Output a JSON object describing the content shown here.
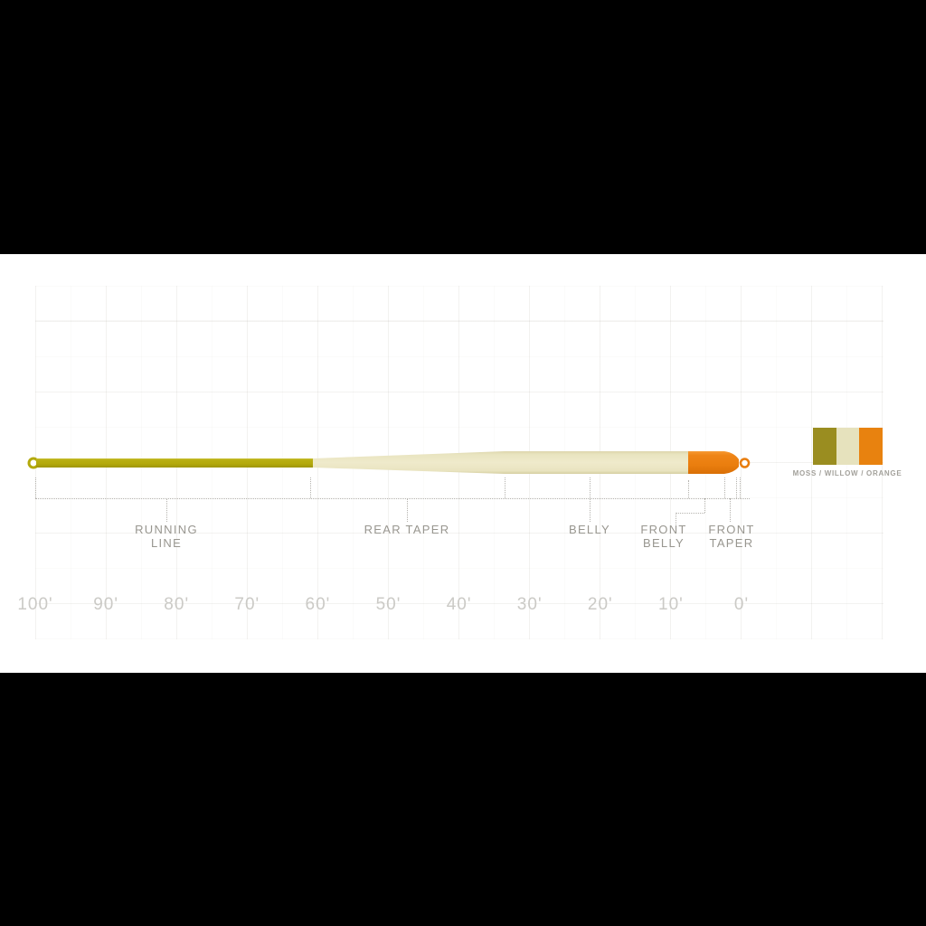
{
  "diagram": {
    "subject": "fly line taper profile",
    "sections": [
      {
        "id": "running-line",
        "label": "RUNNING LINE"
      },
      {
        "id": "rear-taper",
        "label": "REAR TAPER"
      },
      {
        "id": "belly",
        "label": "BELLY"
      },
      {
        "id": "front-belly",
        "label": "FRONT BELLY"
      },
      {
        "id": "front-taper",
        "label": "FRONT TAPER"
      }
    ],
    "ruler": {
      "unit": "feet",
      "labels": [
        "100'",
        "90'",
        "80'",
        "70'",
        "60'",
        "50'",
        "40'",
        "30'",
        "20'",
        "10'",
        "0'"
      ]
    },
    "legend": {
      "caption": "MOSS / WILLOW / ORANGE",
      "colors": [
        {
          "name": "moss",
          "hex": "#9a8d20"
        },
        {
          "name": "willow",
          "hex": "#e6e2bd"
        },
        {
          "name": "orange",
          "hex": "#e8820f"
        }
      ]
    },
    "line_colors": {
      "running_line_moss": "#b3a90b",
      "taper_belly_willow": "#ebe6c4",
      "front_orange": "#ea7e0e"
    }
  },
  "chart_data": {
    "type": "diagram",
    "title": "fly line taper diagram",
    "axis": {
      "label_unit": "feet",
      "ticks": [
        100,
        90,
        80,
        70,
        60,
        50,
        40,
        30,
        20,
        10,
        0
      ],
      "orientation": "values decrease left to right toward line tip"
    },
    "sections_feet": [
      {
        "name": "RUNNING LINE",
        "from_ft": 100,
        "to_ft": 61,
        "color": "moss"
      },
      {
        "name": "REAR TAPER",
        "from_ft": 61,
        "to_ft": 34,
        "color": "willow"
      },
      {
        "name": "BELLY",
        "from_ft": 34,
        "to_ft": 7.5,
        "color": "willow"
      },
      {
        "name": "FRONT BELLY",
        "from_ft": 7.5,
        "to_ft": 2.5,
        "color": "orange"
      },
      {
        "name": "FRONT TAPER",
        "from_ft": 2.5,
        "to_ft": 0.5,
        "color": "orange"
      },
      {
        "name": "tip loop",
        "from_ft": 0.5,
        "to_ft": 0,
        "color": "orange"
      }
    ],
    "legend_entries": [
      "MOSS",
      "WILLOW",
      "ORANGE"
    ]
  }
}
